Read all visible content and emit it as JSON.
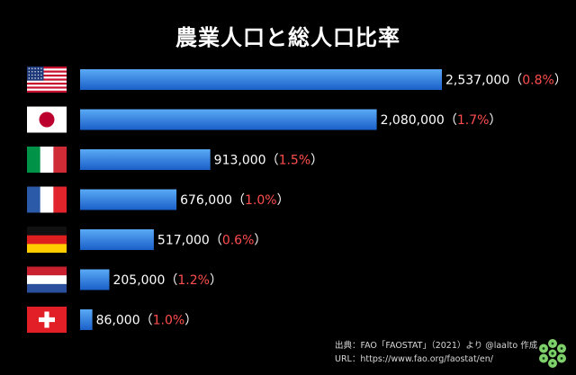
{
  "chart_data": {
    "type": "bar",
    "orientation": "horizontal",
    "title": "農業人口と総人口比率",
    "categories": [
      "USA",
      "Japan",
      "Italy",
      "France",
      "Germany",
      "Netherlands",
      "Switzerland"
    ],
    "values": [
      2537000,
      2080000,
      913000,
      676000,
      517000,
      205000,
      86000
    ],
    "value_labels": [
      "2,537,000",
      "2,080,000",
      "913,000",
      "676,000",
      "517,000",
      "205,000",
      "86,000"
    ],
    "ratio_labels": [
      "0.8%",
      "1.7%",
      "1.5%",
      "1.0%",
      "0.6%",
      "1.2%",
      "1.0%"
    ],
    "xlim": [
      0,
      2537000
    ],
    "grid": false,
    "legend": "none"
  },
  "colors": {
    "background": "#000000",
    "bar_light": "#5aaaf6",
    "bar_dark": "#1a5fc8",
    "value_text": "#ffffff",
    "ratio_text": "#ff4d4d"
  },
  "source": {
    "line1": "出典：FAO「FAOSTAT」（2021）より @laalto 作成",
    "line2": "URL：https://www.fao.org/faostat/en/"
  }
}
